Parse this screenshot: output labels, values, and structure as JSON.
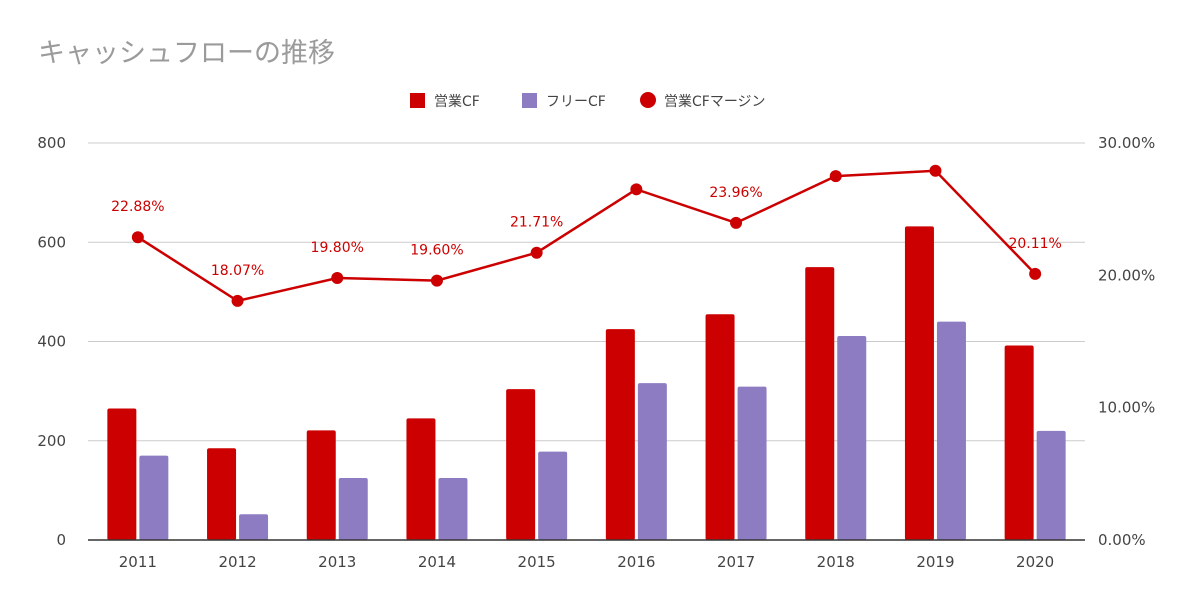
{
  "chart_data": {
    "type": "bar",
    "title": "キャッシュフローの推移",
    "categories": [
      "2011",
      "2012",
      "2013",
      "2014",
      "2015",
      "2016",
      "2017",
      "2018",
      "2019",
      "2020"
    ],
    "series": [
      {
        "name": "営業CF",
        "type": "bar",
        "axis": "left",
        "color": "#cc0000",
        "values": [
          265,
          185,
          221,
          245,
          304,
          425,
          455,
          550,
          632,
          392
        ]
      },
      {
        "name": "フリーCF",
        "type": "bar",
        "axis": "left",
        "color": "#8e7cc3",
        "values": [
          170,
          52,
          125,
          125,
          178,
          316,
          309,
          411,
          440,
          220
        ]
      },
      {
        "name": "営業CFマージン",
        "type": "line",
        "axis": "right",
        "color": "#cc0000",
        "values": [
          22.88,
          18.07,
          19.8,
          19.6,
          21.71,
          26.5,
          23.96,
          27.5,
          27.9,
          20.11
        ],
        "data_labels": [
          "22.88%",
          "18.07%",
          "19.80%",
          "19.60%",
          "21.71%",
          "",
          "23.96%",
          "",
          "",
          "20.11%"
        ]
      }
    ],
    "y_left": {
      "ylim": [
        0,
        800
      ],
      "ticks": [
        "0",
        "200",
        "400",
        "600",
        "800"
      ]
    },
    "y_right": {
      "ylim": [
        0,
        30
      ],
      "ticks": [
        "0.00%",
        "10.00%",
        "20.00%",
        "30.00%"
      ]
    },
    "legend_position": "top-center",
    "grid": true
  }
}
